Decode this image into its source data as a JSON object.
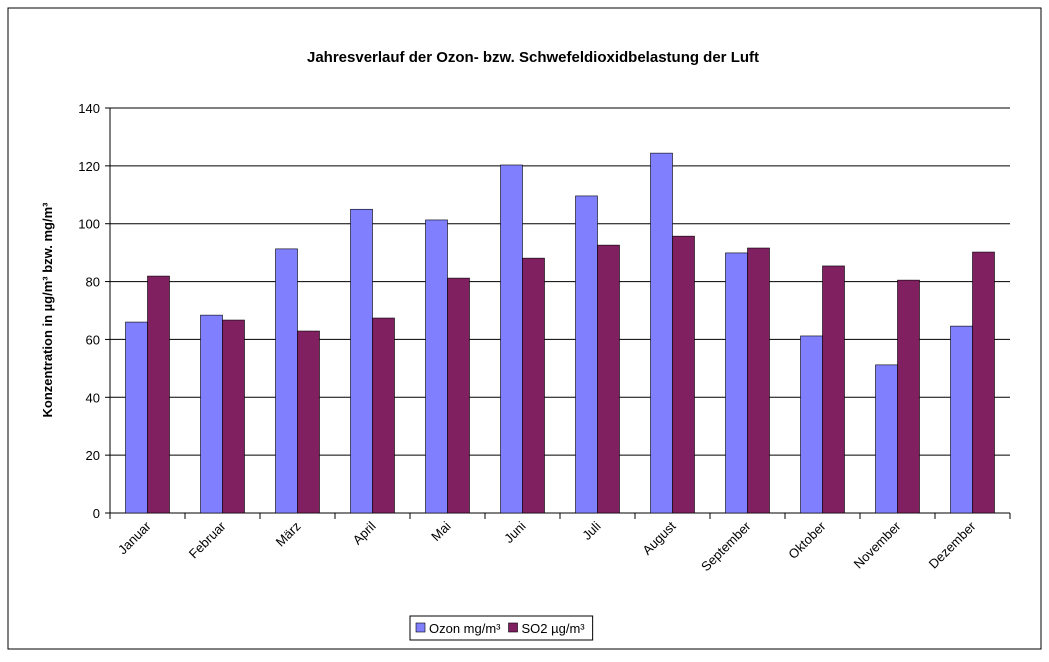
{
  "chart_data": {
    "type": "bar",
    "title": "Jahresverlauf der Ozon- bzw. Schwefeldioxidbelastung der Luft",
    "y_label": "Konzentration in µg/m³ bzw. mg/m³",
    "categories": [
      "Januar",
      "Februar",
      "März",
      "April",
      "Mai",
      "Juni",
      "Juli",
      "August",
      "September",
      "Oktober",
      "November",
      "Dezember"
    ],
    "series": [
      {
        "name": "Ozon mg/m³",
        "color": "#8080ff",
        "values": [
          66,
          68.4,
          91.3,
          105,
          101.3,
          120.3,
          109.6,
          124.4,
          89.9,
          61.2,
          51.2,
          64.6
        ]
      },
      {
        "name": "SO2 µg/m³",
        "color": "#802060",
        "values": [
          81.9,
          66.7,
          62.9,
          67.4,
          81.2,
          88.1,
          92.6,
          95.7,
          91.6,
          85.4,
          80.5,
          90.2
        ]
      }
    ],
    "ylim": [
      0,
      140
    ],
    "yticks": [
      0,
      20,
      40,
      60,
      80,
      100,
      120,
      140
    ],
    "grid": true,
    "legend": "bottom"
  }
}
